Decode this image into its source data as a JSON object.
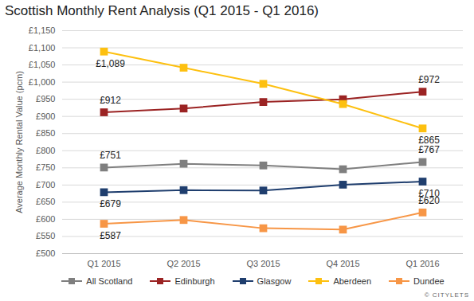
{
  "chart_data": {
    "type": "line",
    "title": "Scottish Monthly Rent Analysis (Q1 2015 - Q1 2016)",
    "y_label": "Average Monthly Rental Value (pcm)",
    "source": "© CITYLETS",
    "categories": [
      "Q1 2015",
      "Q2 2015",
      "Q3 2015",
      "Q4 2015",
      "Q1 2016"
    ],
    "series": [
      {
        "name": "All Scotland",
        "color": "#7f7f7f",
        "marker": "square",
        "values": [
          751,
          762,
          757,
          746,
          767
        ],
        "value_labels": [
          "£751",
          null,
          null,
          null,
          "£767"
        ]
      },
      {
        "name": "Edinburgh",
        "color": "#9b2323",
        "marker": "square",
        "values": [
          912,
          923,
          942,
          950,
          972
        ],
        "value_labels": [
          "£912",
          null,
          null,
          null,
          "£972"
        ]
      },
      {
        "name": "Glasgow",
        "color": "#1f3e6e",
        "marker": "square",
        "values": [
          679,
          685,
          684,
          701,
          710
        ],
        "value_labels": [
          "£679",
          null,
          null,
          null,
          "£710"
        ]
      },
      {
        "name": "Aberdeen",
        "color": "#fdc010",
        "marker": "square",
        "values": [
          1089,
          1042,
          995,
          936,
          865
        ],
        "value_labels": [
          "£1,089",
          null,
          null,
          null,
          "£865"
        ]
      },
      {
        "name": "Dundee",
        "color": "#f79646",
        "marker": "square",
        "values": [
          587,
          598,
          574,
          570,
          620
        ],
        "value_labels": [
          "£587",
          null,
          null,
          null,
          "£620"
        ]
      }
    ],
    "ylim": [
      500,
      1150
    ],
    "yticks": [
      {
        "value": 500,
        "label": "£500"
      },
      {
        "value": 550,
        "label": "£550"
      },
      {
        "value": 600,
        "label": "£600"
      },
      {
        "value": 650,
        "label": "£650"
      },
      {
        "value": 700,
        "label": "£700"
      },
      {
        "value": 750,
        "label": "£750"
      },
      {
        "value": 800,
        "label": "£800"
      },
      {
        "value": 850,
        "label": "£850"
      },
      {
        "value": 900,
        "label": "£900"
      },
      {
        "value": 950,
        "label": "£950"
      },
      {
        "value": 1000,
        "label": "£1,000"
      },
      {
        "value": 1050,
        "label": "£1,050"
      },
      {
        "value": 1100,
        "label": "£1,100"
      },
      {
        "value": 1150,
        "label": "£1,150"
      }
    ],
    "grid": true,
    "data_labels": true,
    "legend": "bottom"
  }
}
